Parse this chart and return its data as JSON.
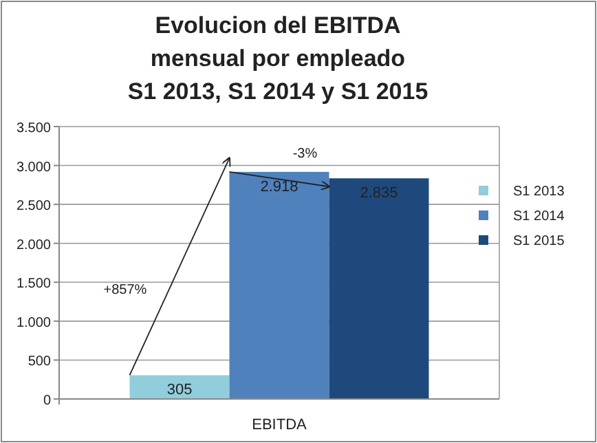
{
  "chart_data": {
    "type": "bar",
    "title": "Evolucion del EBITDA\nmensual por empleado\nS1 2013, S1 2014 y S1 2015",
    "categories": [
      "EBITDA"
    ],
    "series": [
      {
        "name": "S1 2013",
        "color": "#92cddc",
        "values": [
          305
        ],
        "value_labels": [
          "305"
        ]
      },
      {
        "name": "S1 2014",
        "color": "#4f81bd",
        "values": [
          2918
        ],
        "value_labels": [
          "2.918"
        ]
      },
      {
        "name": "S1 2015",
        "color": "#1f497d",
        "values": [
          2835
        ],
        "value_labels": [
          "2.835"
        ]
      }
    ],
    "ylim": [
      0,
      3500
    ],
    "yticks": [
      0,
      {
        "value": 500,
        "label": "500"
      },
      {
        "value": 1000,
        "label": "1.000"
      },
      {
        "value": 1500,
        "label": "1.500"
      },
      {
        "value": 2000,
        "label": "2.000"
      },
      {
        "value": 2500,
        "label": "2.500"
      },
      {
        "value": 3000,
        "label": "3.000"
      },
      {
        "value": 3500,
        "label": "3.500"
      }
    ],
    "grid": "y",
    "legend": "right",
    "annotations": [
      "+857%",
      "-3%"
    ]
  }
}
